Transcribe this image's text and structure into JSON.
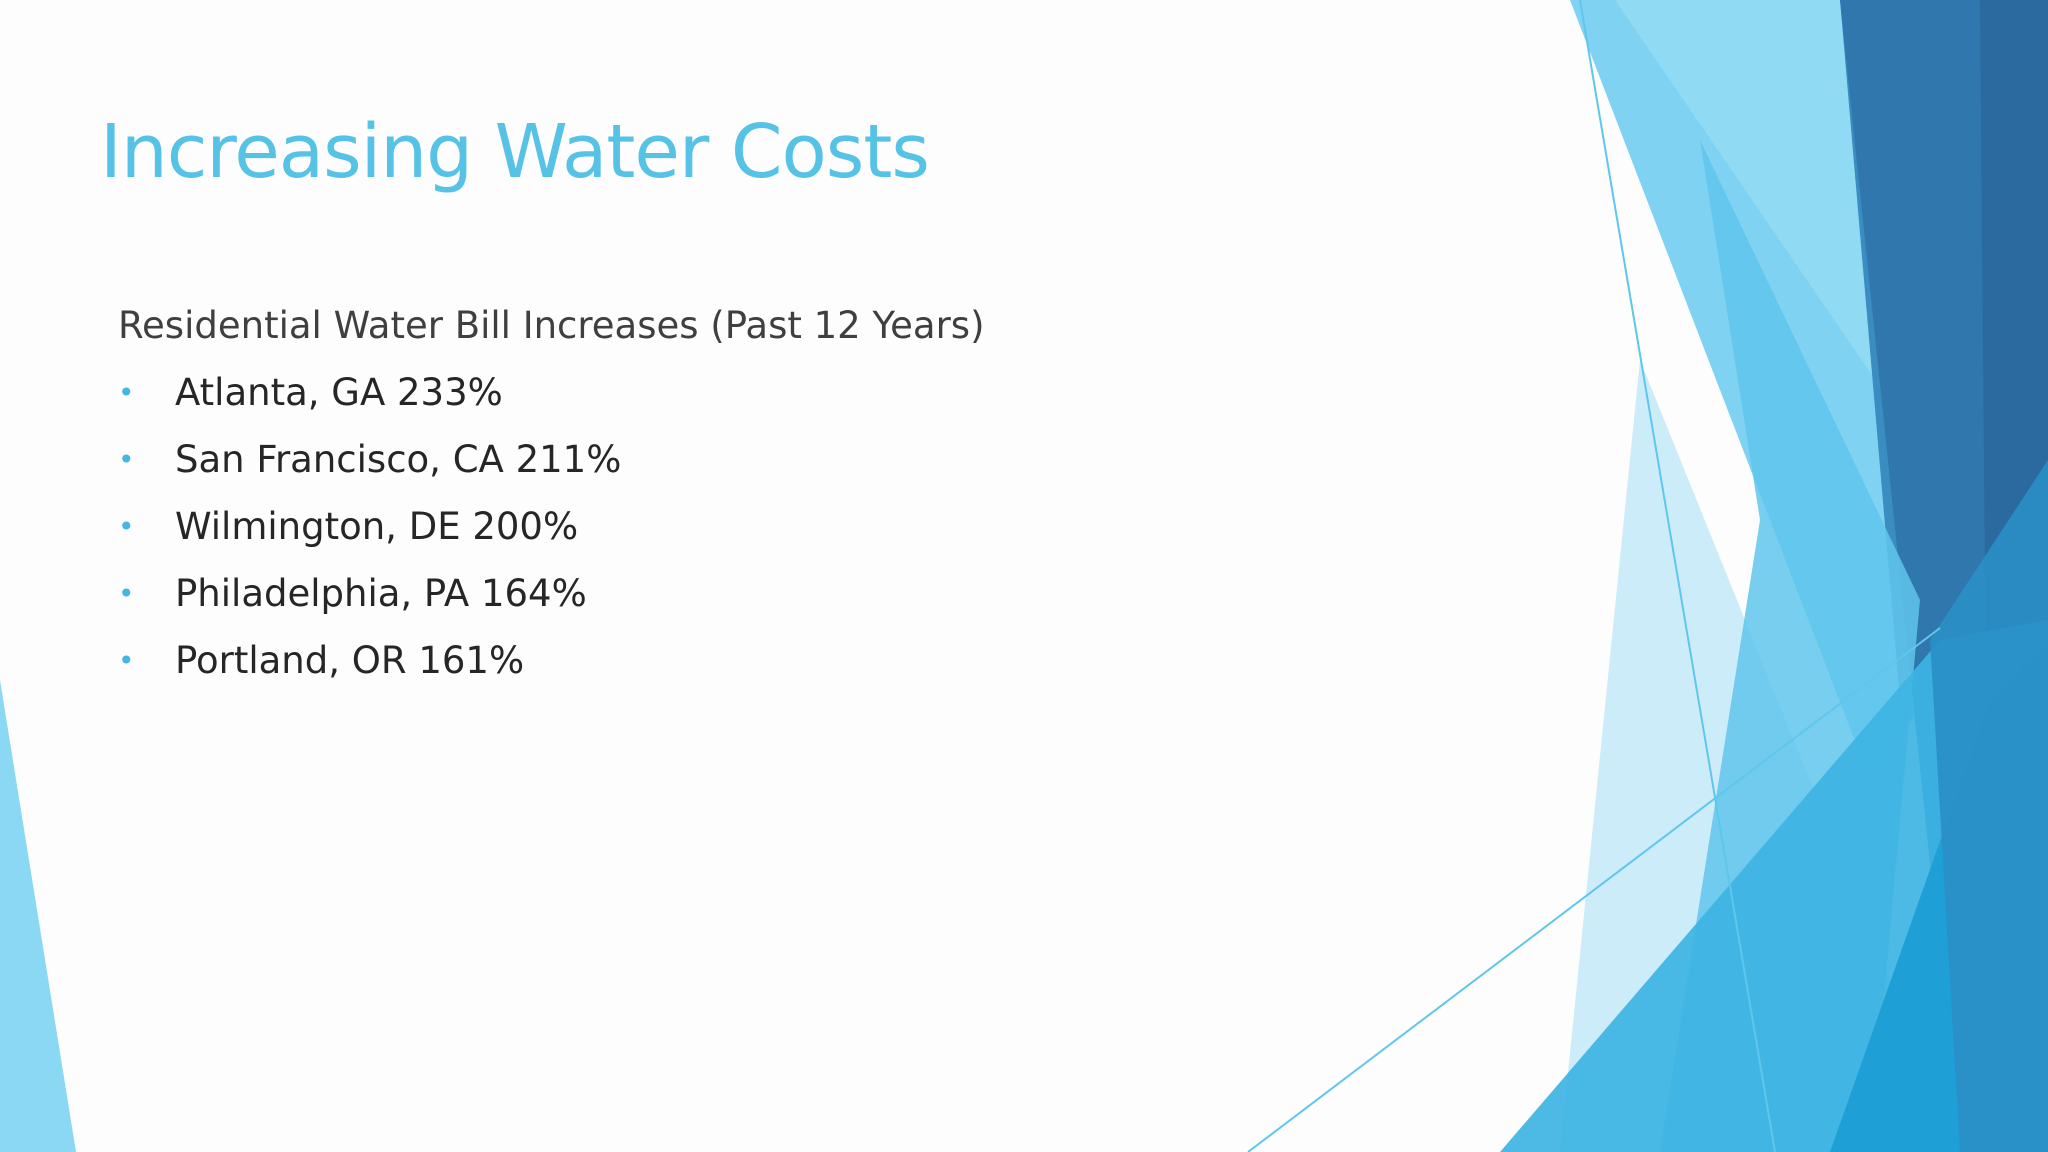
{
  "slide": {
    "title": "Increasing Water Costs",
    "intro": "Residential Water Bill Increases (Past 12 Years)",
    "bullet_glyph": "•",
    "bullets": [
      "Atlanta, GA  233%",
      "San Francisco, CA  211%",
      "Wilmington, DE  200%",
      "Philadelphia, PA  164%",
      "Portland, OR  161%"
    ]
  },
  "theme": {
    "title_color": "#55c2e6",
    "text_color": "#262626",
    "bullet_color": "#45b6e2",
    "accent_light": "#7dd1f0",
    "accent_medium": "#33b5e5",
    "accent_dark": "#2a6f9f"
  }
}
